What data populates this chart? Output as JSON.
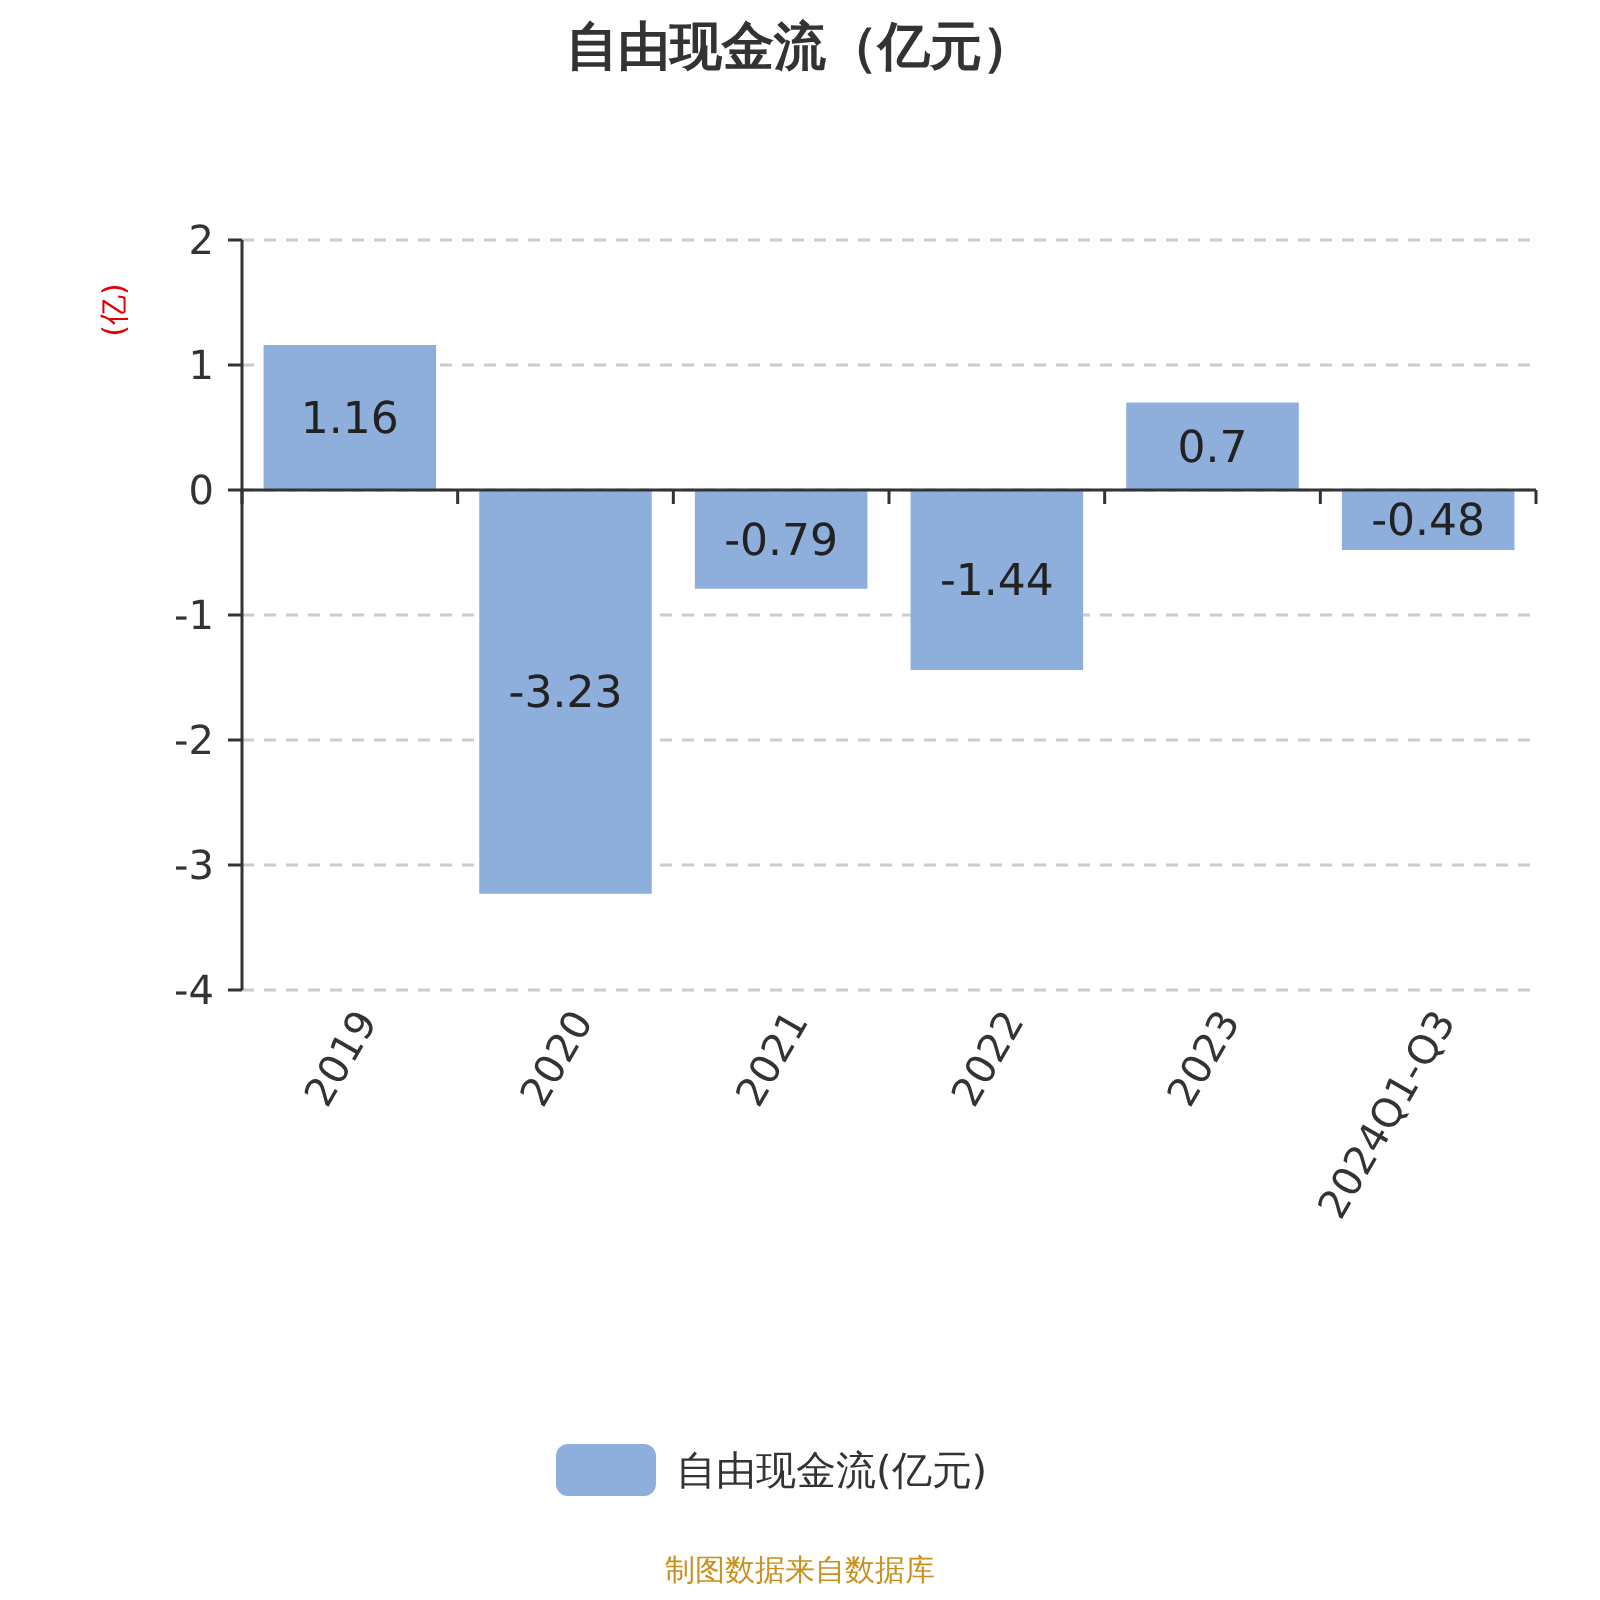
{
  "chart_data": {
    "type": "bar",
    "title": "自由现金流（亿元）",
    "ylabel": "(亿)",
    "categories": [
      "2019",
      "2020",
      "2021",
      "2022",
      "2023",
      "2024Q1-Q3"
    ],
    "series": [
      {
        "name": "自由现金流(亿元)",
        "color": "#8eaedb",
        "values": [
          1.16,
          -3.23,
          -0.79,
          -1.44,
          0.7,
          -0.48
        ]
      }
    ],
    "ylim": [
      -4,
      2
    ],
    "yticks": [
      -4,
      -3,
      -2,
      -1,
      0,
      1,
      2
    ],
    "grid": "y",
    "legend": "bottom",
    "data_labels": true,
    "annotations": [
      "制图数据来自数据库"
    ]
  }
}
